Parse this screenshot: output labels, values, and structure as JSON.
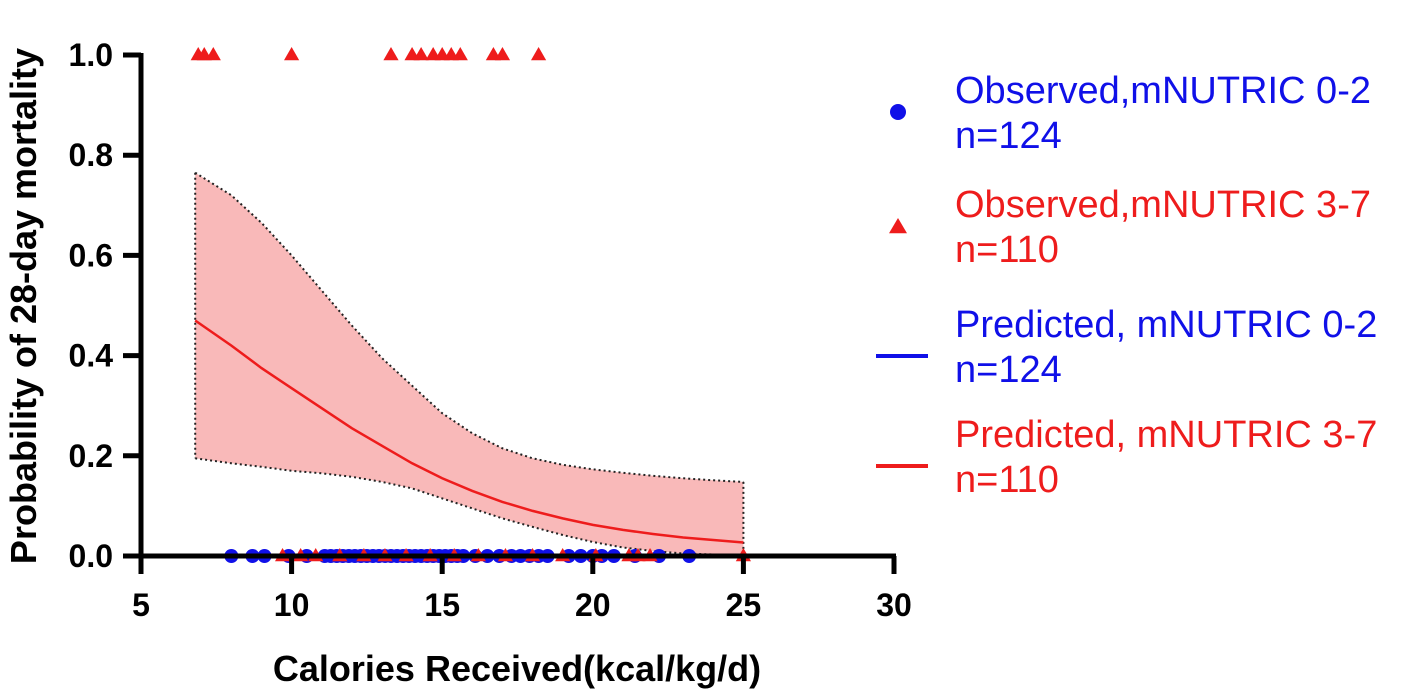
{
  "chart_data": {
    "type": "scatter",
    "title": "",
    "xlabel": "Calories Received(kcal/kg/d)",
    "ylabel": "Probability of 28-day mortality",
    "xlim": [
      5,
      30
    ],
    "ylim": [
      0,
      1.0
    ],
    "x_ticks": [
      5,
      10,
      15,
      20,
      25,
      30
    ],
    "x_tick_labels": [
      "5",
      "10",
      "15",
      "20",
      "25",
      "30"
    ],
    "y_ticks": [
      0,
      0.2,
      0.4,
      0.6,
      0.8,
      1.0
    ],
    "y_tick_labels": [
      "0.0",
      "0.2",
      "0.4",
      "0.6",
      "0.8",
      "1.0"
    ],
    "colors": {
      "blue": "#1010e8",
      "red": "#ee1c1c",
      "band_fill": "#f9b9b9"
    },
    "series": [
      {
        "name": "Observed,mNUTRIC 0-2",
        "n_label": "n=124",
        "kind": "points",
        "marker": "circle",
        "color": "#1010e8",
        "points": [
          [
            8.0,
            0
          ],
          [
            8.7,
            0
          ],
          [
            9.1,
            0
          ],
          [
            9.9,
            0
          ],
          [
            10.5,
            0
          ],
          [
            11.1,
            0
          ],
          [
            11.3,
            0
          ],
          [
            11.5,
            0
          ],
          [
            11.7,
            0
          ],
          [
            11.9,
            0
          ],
          [
            12.1,
            0
          ],
          [
            12.3,
            0
          ],
          [
            12.5,
            0
          ],
          [
            12.7,
            0
          ],
          [
            12.9,
            0
          ],
          [
            13.1,
            0
          ],
          [
            13.3,
            0
          ],
          [
            13.5,
            0
          ],
          [
            13.7,
            0
          ],
          [
            13.9,
            0
          ],
          [
            14.1,
            0
          ],
          [
            14.3,
            0
          ],
          [
            14.5,
            0
          ],
          [
            14.7,
            0
          ],
          [
            14.9,
            0
          ],
          [
            15.1,
            0
          ],
          [
            15.3,
            0
          ],
          [
            15.5,
            0
          ],
          [
            15.7,
            0
          ],
          [
            16.1,
            0
          ],
          [
            16.5,
            0
          ],
          [
            16.9,
            0
          ],
          [
            17.3,
            0
          ],
          [
            17.6,
            0
          ],
          [
            17.9,
            0
          ],
          [
            18.2,
            0
          ],
          [
            18.5,
            0
          ],
          [
            19.2,
            0
          ],
          [
            19.6,
            0
          ],
          [
            20.0,
            0
          ],
          [
            20.3,
            0
          ],
          [
            20.7,
            0
          ],
          [
            21.4,
            0
          ],
          [
            22.2,
            0
          ],
          [
            23.2,
            0
          ]
        ]
      },
      {
        "name": "Observed,mNUTRIC 3-7",
        "n_label": "n=110",
        "kind": "points",
        "marker": "triangle",
        "color": "#ee1c1c",
        "points": [
          [
            6.9,
            1
          ],
          [
            7.1,
            1
          ],
          [
            7.4,
            1
          ],
          [
            10.0,
            1
          ],
          [
            13.3,
            1
          ],
          [
            14.0,
            1
          ],
          [
            14.3,
            1
          ],
          [
            14.7,
            1
          ],
          [
            15.0,
            1
          ],
          [
            15.3,
            1
          ],
          [
            15.6,
            1
          ],
          [
            16.7,
            1
          ],
          [
            17.0,
            1
          ],
          [
            18.2,
            1
          ],
          [
            9.7,
            0
          ],
          [
            10.3,
            0
          ],
          [
            10.8,
            0
          ],
          [
            11.6,
            0
          ],
          [
            12.4,
            0
          ],
          [
            13.1,
            0
          ],
          [
            13.8,
            0
          ],
          [
            14.6,
            0
          ],
          [
            15.4,
            0
          ],
          [
            16.2,
            0
          ],
          [
            17.1,
            0
          ],
          [
            18.0,
            0
          ],
          [
            19.0,
            0
          ],
          [
            20.1,
            0
          ],
          [
            21.2,
            0
          ],
          [
            21.5,
            0
          ],
          [
            21.9,
            0
          ],
          [
            25.0,
            0
          ]
        ]
      },
      {
        "name": "Predicted, mNUTRIC 0-2",
        "n_label": "n=124",
        "kind": "line",
        "color": "#1010e8",
        "x": [
          5,
          6,
          7,
          8,
          9,
          10,
          11,
          12,
          13,
          14,
          15,
          16,
          17,
          18,
          19,
          20,
          21,
          22,
          23
        ],
        "y": [
          0.002,
          0.002,
          0.0018,
          0.0016,
          0.0015,
          0.0013,
          0.0012,
          0.0011,
          0.001,
          0.0009,
          0.0008,
          0.0007,
          0.0006,
          0.0005,
          0.0005,
          0.0004,
          0.0004,
          0.0003,
          0.0003
        ]
      },
      {
        "name": "Predicted, mNUTRIC 3-7",
        "n_label": "n=110",
        "kind": "line_with_band",
        "color": "#ee1c1c",
        "x": [
          6.8,
          8,
          9,
          10,
          11,
          12,
          13,
          14,
          15,
          16,
          17,
          18,
          19,
          20,
          21,
          22,
          23,
          24,
          25
        ],
        "y": [
          0.47,
          0.42,
          0.375,
          0.335,
          0.295,
          0.255,
          0.22,
          0.185,
          0.155,
          0.13,
          0.108,
          0.09,
          0.075,
          0.062,
          0.052,
          0.044,
          0.037,
          0.032,
          0.027
        ],
        "lower": [
          0.195,
          0.185,
          0.178,
          0.17,
          0.165,
          0.158,
          0.148,
          0.135,
          0.115,
          0.095,
          0.075,
          0.058,
          0.042,
          0.028,
          0.017,
          0.01,
          0.005,
          0.003,
          0.001
        ],
        "upper": [
          0.765,
          0.72,
          0.665,
          0.6,
          0.53,
          0.46,
          0.395,
          0.34,
          0.285,
          0.245,
          0.215,
          0.195,
          0.182,
          0.173,
          0.166,
          0.16,
          0.155,
          0.151,
          0.148
        ]
      }
    ],
    "legend": {
      "position": "right",
      "entries": [
        {
          "label": "Observed,mNUTRIC 0-2",
          "sub": "n=124",
          "color": "#1010e8",
          "symbol": "circle"
        },
        {
          "label": "Observed,mNUTRIC 3-7",
          "sub": "n=110",
          "color": "#ee1c1c",
          "symbol": "triangle"
        },
        {
          "label": "Predicted, mNUTRIC 0-2",
          "sub": "n=124",
          "color": "#1010e8",
          "symbol": "line"
        },
        {
          "label": "Predicted, mNUTRIC 3-7",
          "sub": "n=110",
          "color": "#ee1c1c",
          "symbol": "line"
        }
      ]
    }
  }
}
